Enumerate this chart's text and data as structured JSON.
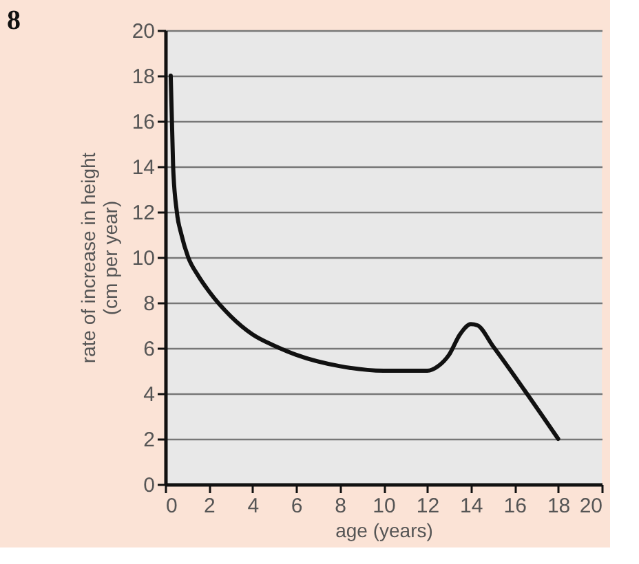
{
  "chart_data": {
    "type": "line",
    "title": "8",
    "xlabel": "age (years)",
    "ylabel": "rate of increase in height (cm per year)",
    "x": [
      0.25,
      0.36,
      0.53,
      0.74,
      1.05,
      1.5,
      2,
      3,
      4,
      5,
      6,
      8,
      10,
      12,
      12.5,
      13,
      13.5,
      14,
      14.3,
      15,
      18
    ],
    "series": [
      {
        "color": "#111111",
        "values": [
          18,
          14,
          12,
          11,
          10,
          9.2,
          8.5,
          7.4,
          6.6,
          6.1,
          5.7,
          5.2,
          5.0,
          5.0,
          5.2,
          5.7,
          6.6,
          7.05,
          7.0,
          6.1,
          2.0
        ]
      }
    ],
    "xlim": [
      0,
      20
    ],
    "xticks": [
      0,
      2,
      4,
      6,
      8,
      10,
      12,
      14,
      16,
      18,
      20
    ],
    "ylim": [
      0,
      20
    ],
    "yticks": [
      0,
      2,
      4,
      6,
      8,
      10,
      12,
      14,
      16,
      18,
      20
    ],
    "grid": "y",
    "legend": false,
    "marker": "none",
    "line_style": "solid"
  }
}
